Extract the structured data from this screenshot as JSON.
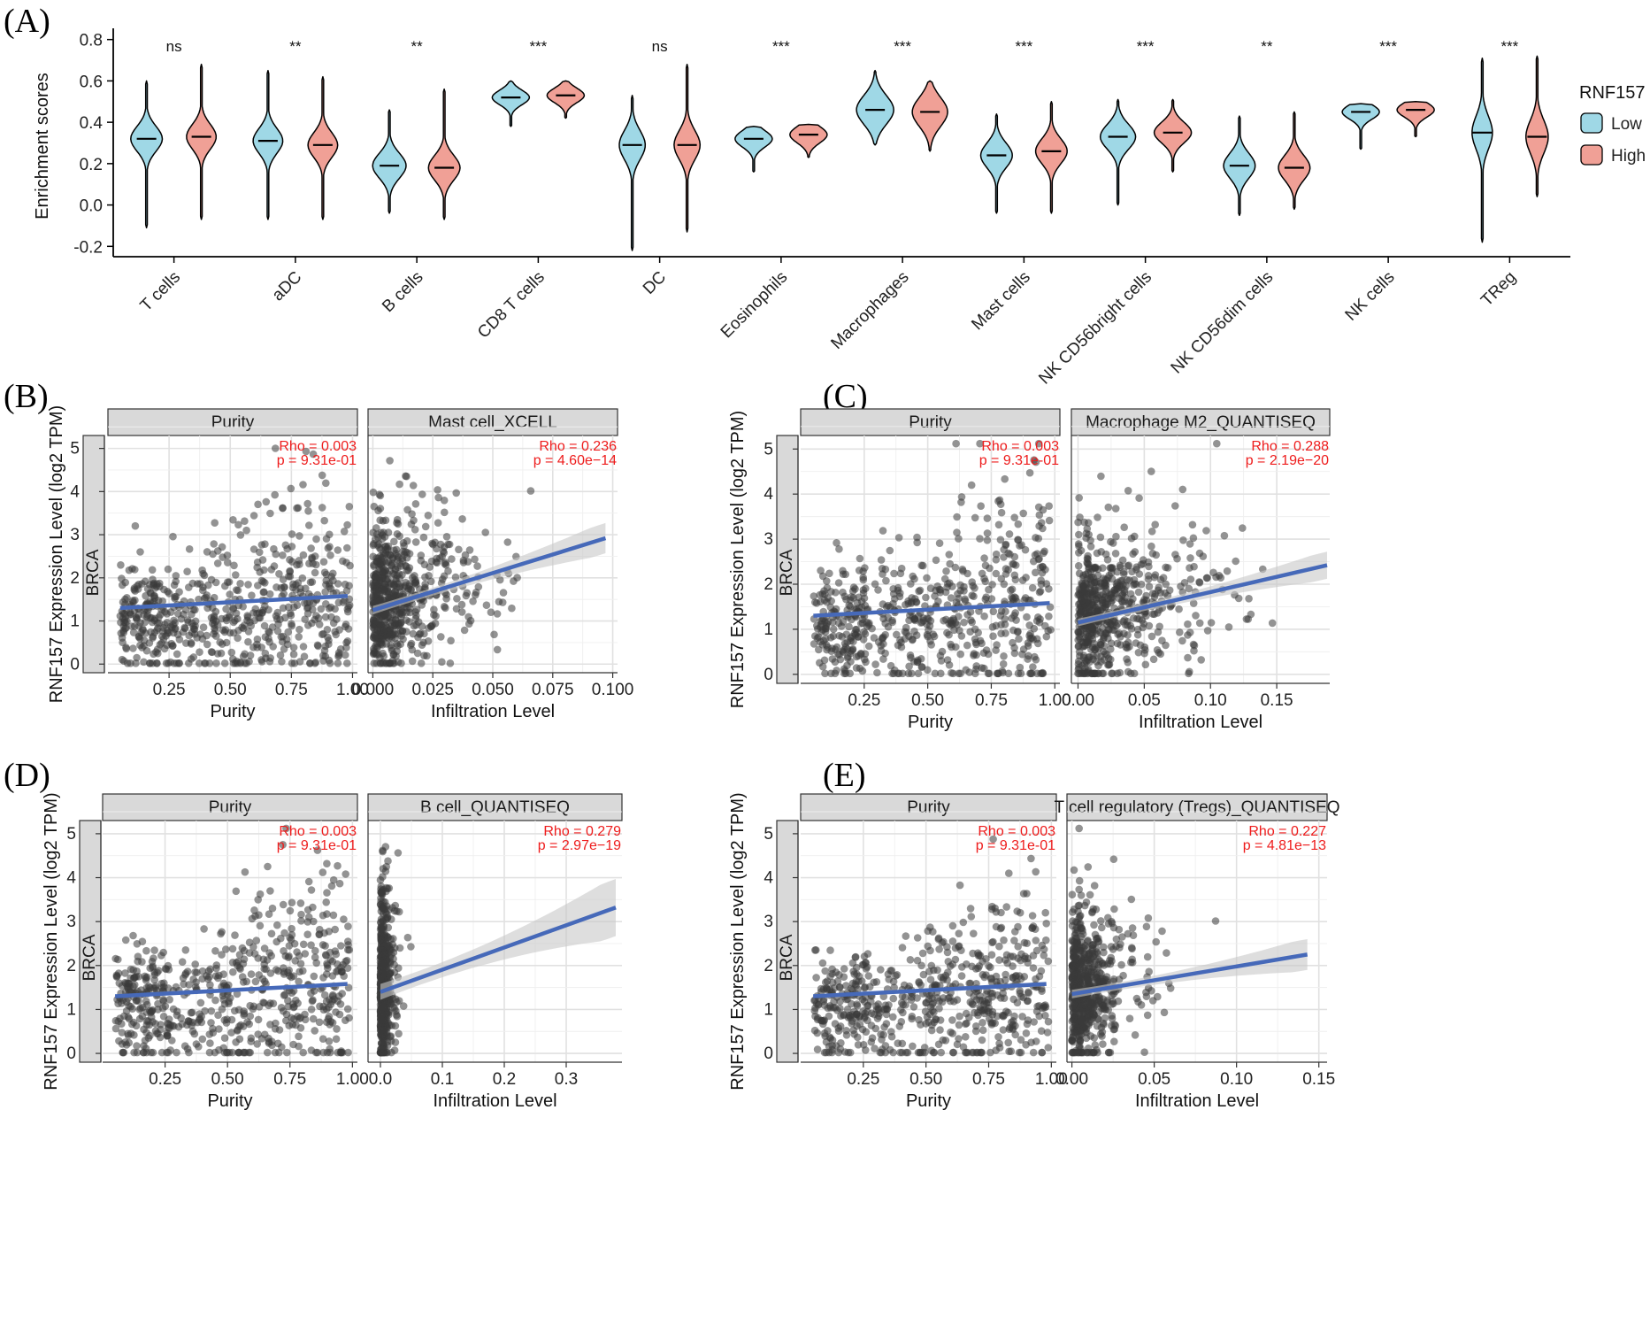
{
  "figure": {
    "panel_labels": [
      "(A)",
      "(B)",
      "(C)",
      "(D)",
      "(E)"
    ]
  },
  "colors": {
    "low": "#9fd8e6",
    "high": "#f0a096",
    "trend": "#4669b9",
    "band": "#c8c8c8",
    "points": "#3a3a3a",
    "stat_text": "#ee1c1c",
    "strip": "#d9d9d9"
  },
  "chart_data": [
    {
      "id": "A",
      "type": "violin",
      "ylabel": "Enrichment scores",
      "ylim": [
        -0.25,
        0.82
      ],
      "yticks": [
        -0.2,
        0.0,
        0.2,
        0.4,
        0.6,
        0.8
      ],
      "ytick_labels": [
        "-0.2",
        "0.0",
        "0.2",
        "0.4",
        "0.6",
        "0.8"
      ],
      "legend": {
        "title": "RNF157",
        "entries": [
          "Low",
          "High"
        ],
        "position": "right"
      },
      "categories": [
        "T cells",
        "aDC",
        "B cells",
        "CD8 T cells",
        "DC",
        "Eosinophils",
        "Macrophages",
        "Mast cells",
        "NK CD56bright cells",
        "NK CD56dim cells",
        "NK cells",
        "TReg"
      ],
      "significance": [
        "ns",
        "**",
        "**",
        "***",
        "ns",
        "***",
        "***",
        "***",
        "***",
        "**",
        "***",
        "***"
      ],
      "series": [
        {
          "name": "Low",
          "medians": [
            0.32,
            0.31,
            0.19,
            0.52,
            0.29,
            0.32,
            0.46,
            0.24,
            0.33,
            0.19,
            0.45,
            0.35
          ],
          "mins": [
            -0.11,
            -0.07,
            -0.04,
            0.38,
            -0.22,
            0.16,
            0.29,
            -0.04,
            0.0,
            -0.05,
            0.27,
            -0.18
          ],
          "maxs": [
            0.6,
            0.65,
            0.46,
            0.6,
            0.53,
            0.38,
            0.65,
            0.44,
            0.51,
            0.43,
            0.49,
            0.71
          ],
          "spread": [
            0.06,
            0.06,
            0.06,
            0.035,
            0.07,
            0.04,
            0.07,
            0.06,
            0.06,
            0.06,
            0.035,
            0.08
          ],
          "width": [
            0.85,
            0.8,
            0.9,
            1.0,
            0.7,
            1.0,
            1.0,
            0.85,
            0.95,
            0.85,
            1.0,
            0.55
          ]
        },
        {
          "name": "High",
          "medians": [
            0.33,
            0.29,
            0.18,
            0.53,
            0.29,
            0.34,
            0.45,
            0.26,
            0.35,
            0.18,
            0.46,
            0.33
          ],
          "mins": [
            -0.07,
            -0.07,
            -0.07,
            0.42,
            -0.13,
            0.23,
            0.26,
            -0.04,
            0.16,
            -0.02,
            0.33,
            0.04
          ],
          "maxs": [
            0.68,
            0.62,
            0.56,
            0.6,
            0.68,
            0.39,
            0.6,
            0.5,
            0.51,
            0.45,
            0.5,
            0.72
          ],
          "spread": [
            0.06,
            0.06,
            0.06,
            0.035,
            0.07,
            0.04,
            0.07,
            0.06,
            0.05,
            0.06,
            0.035,
            0.08
          ],
          "width": [
            0.8,
            0.8,
            0.85,
            1.0,
            0.7,
            1.0,
            0.95,
            0.85,
            1.0,
            0.85,
            1.0,
            0.6
          ]
        }
      ]
    },
    {
      "id": "B",
      "type": "scatter",
      "ylabel": "RNF157 Expression Level (log2 TPM)",
      "row_label": "BRCA",
      "ylim": [
        -0.2,
        5.3
      ],
      "yticks": [
        0,
        1,
        2,
        3,
        4,
        5
      ],
      "facets": [
        {
          "strip": "Purity",
          "xlabel": "Purity",
          "xlim": [
            0.0,
            1.02
          ],
          "xticks": [
            0.25,
            0.5,
            0.75,
            1.0
          ],
          "xtick_labels": [
            "0.25",
            "0.50",
            "0.75",
            "1.00"
          ],
          "rho": "Rho = 0.003",
          "p": "p = 9.31e-01",
          "fit": {
            "x": [
              0.05,
              0.98
            ],
            "y": [
              1.3,
              1.58
            ]
          },
          "band": 0.05,
          "cloud": {
            "kind": "purity",
            "xmin": 0.05,
            "xmax": 0.99,
            "skew": 0.75
          }
        },
        {
          "strip": "Mast cell_XCELL",
          "xlabel": "Infiltration Level",
          "xlim": [
            -0.002,
            0.102
          ],
          "xticks": [
            0.0,
            0.025,
            0.05,
            0.075,
            0.1
          ],
          "xtick_labels": [
            "0.000",
            "0.025",
            "0.050",
            "0.075",
            "0.100"
          ],
          "rho": "Rho = 0.236",
          "p": "p = 4.60e−14",
          "fit": {
            "x": [
              0.0,
              0.097
            ],
            "y": [
              1.25,
              2.92
            ]
          },
          "band": 0.35,
          "cloud": {
            "kind": "infil",
            "xmin": 0.0,
            "xmax": 0.1,
            "scale": 0.013,
            "cap": 0.06
          }
        }
      ]
    },
    {
      "id": "C",
      "type": "scatter",
      "ylabel": "RNF157 Expression Level (log2 TPM)",
      "row_label": "BRCA",
      "ylim": [
        -0.2,
        5.3
      ],
      "yticks": [
        0,
        1,
        2,
        3,
        4,
        5
      ],
      "facets": [
        {
          "strip": "Purity",
          "xlabel": "Purity",
          "xlim": [
            0.0,
            1.02
          ],
          "xticks": [
            0.25,
            0.5,
            0.75,
            1.0
          ],
          "xtick_labels": [
            "0.25",
            "0.50",
            "0.75",
            "1.00"
          ],
          "rho": "Rho = 0.003",
          "p": "p = 9.31e-01",
          "fit": {
            "x": [
              0.05,
              0.98
            ],
            "y": [
              1.3,
              1.58
            ]
          },
          "band": 0.05,
          "cloud": {
            "kind": "purity",
            "xmin": 0.05,
            "xmax": 0.99,
            "skew": 0.75
          }
        },
        {
          "strip": "Macrophage M2_QUANTISEQ",
          "xlabel": "Infiltration Level",
          "xlim": [
            -0.005,
            0.19
          ],
          "xticks": [
            0.0,
            0.05,
            0.1,
            0.15
          ],
          "xtick_labels": [
            "0.00",
            "0.05",
            "0.10",
            "0.15"
          ],
          "rho": "Rho = 0.288",
          "p": "p = 2.19e−20",
          "fit": {
            "x": [
              0.0,
              0.188
            ],
            "y": [
              1.15,
              2.42
            ]
          },
          "band": 0.3,
          "cloud": {
            "kind": "infil",
            "xmin": 0.0,
            "xmax": 0.19,
            "scale": 0.03,
            "cap": 0.13
          }
        }
      ]
    },
    {
      "id": "D",
      "type": "scatter",
      "ylabel": "RNF157 Expression Level (log2 TPM)",
      "row_label": "BRCA",
      "ylim": [
        -0.2,
        5.3
      ],
      "yticks": [
        0,
        1,
        2,
        3,
        4,
        5
      ],
      "facets": [
        {
          "strip": "Purity",
          "xlabel": "Purity",
          "xlim": [
            0.0,
            1.02
          ],
          "xticks": [
            0.25,
            0.5,
            0.75,
            1.0
          ],
          "xtick_labels": [
            "0.25",
            "0.50",
            "0.75",
            "1.00"
          ],
          "rho": "Rho = 0.003",
          "p": "p = 9.31e-01",
          "fit": {
            "x": [
              0.05,
              0.98
            ],
            "y": [
              1.3,
              1.58
            ]
          },
          "band": 0.05,
          "cloud": {
            "kind": "purity",
            "xmin": 0.05,
            "xmax": 0.99,
            "skew": 0.75
          }
        },
        {
          "strip": "B cell_QUANTISEQ",
          "xlabel": "Infiltration Level",
          "xlim": [
            -0.02,
            0.39
          ],
          "xticks": [
            0.0,
            0.1,
            0.2,
            0.3
          ],
          "xtick_labels": [
            "0.0",
            "0.1",
            "0.2",
            "0.3"
          ],
          "rho": "Rho = 0.279",
          "p": "p = 2.97e−19",
          "fit": {
            "x": [
              0.0,
              0.38
            ],
            "y": [
              1.4,
              3.32
            ]
          },
          "band": 0.65,
          "cloud": {
            "kind": "infil",
            "xmin": 0.0,
            "xmax": 0.38,
            "scale": 0.006,
            "cap": 0.05
          }
        }
      ]
    },
    {
      "id": "E",
      "type": "scatter",
      "ylabel": "RNF157 Expression Level (log2 TPM)",
      "row_label": "BRCA",
      "ylim": [
        -0.2,
        5.3
      ],
      "yticks": [
        0,
        1,
        2,
        3,
        4,
        5
      ],
      "facets": [
        {
          "strip": "Purity",
          "xlabel": "Purity",
          "xlim": [
            0.0,
            1.02
          ],
          "xticks": [
            0.25,
            0.5,
            0.75,
            1.0
          ],
          "xtick_labels": [
            "0.25",
            "0.50",
            "0.75",
            "1.00"
          ],
          "rho": "Rho = 0.003",
          "p": "p = 9.31e-01",
          "fit": {
            "x": [
              0.05,
              0.98
            ],
            "y": [
              1.3,
              1.58
            ]
          },
          "band": 0.05,
          "cloud": {
            "kind": "purity",
            "xmin": 0.05,
            "xmax": 0.99,
            "skew": 0.75
          }
        },
        {
          "strip": "T cell regulatory (Tregs)_QUANTISEQ",
          "xlabel": "Infiltration Level",
          "xlim": [
            -0.003,
            0.155
          ],
          "xticks": [
            0.0,
            0.05,
            0.1,
            0.15
          ],
          "xtick_labels": [
            "0.00",
            "0.05",
            "0.10",
            "0.15"
          ],
          "rho": "Rho = 0.227",
          "p": "p = 4.81e−13",
          "fit": {
            "x": [
              0.0,
              0.143
            ],
            "y": [
              1.35,
              2.25
            ]
          },
          "band": 0.35,
          "cloud": {
            "kind": "infil",
            "xmin": 0.0,
            "xmax": 0.145,
            "scale": 0.012,
            "cap": 0.06
          }
        }
      ]
    }
  ]
}
